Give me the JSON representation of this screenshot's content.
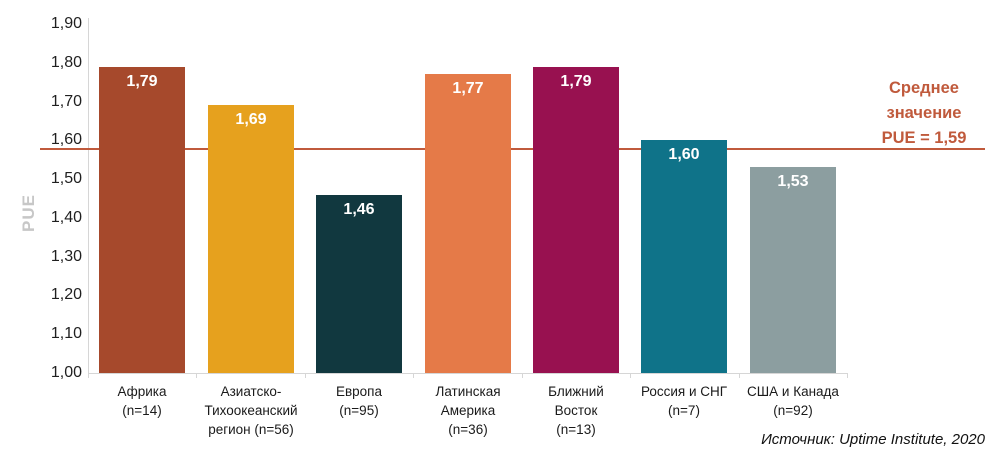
{
  "chart_data": {
    "type": "bar",
    "title": "",
    "xlabel": "",
    "ylabel": "PUE",
    "ylim": [
      1.0,
      1.9
    ],
    "grid": false,
    "legend": null,
    "y_tick_labels": [
      "1,90",
      "1,80",
      "1,70",
      "1,60",
      "1,50",
      "1,40",
      "1,30",
      "1,20",
      "1,10",
      "1,00"
    ],
    "y_tick_values": [
      1.9,
      1.8,
      1.7,
      1.6,
      1.5,
      1.4,
      1.3,
      1.2,
      1.1,
      1.0
    ],
    "decimal_separator": ",",
    "categories": [
      {
        "name": "Африка",
        "n": 14,
        "label_lines": [
          "Африка",
          "(n=14)"
        ]
      },
      {
        "name": "Азиатско-Тихоокеанский регион",
        "n": 56,
        "label_lines": [
          "Азиатско-",
          "Тихоокеанский",
          "регион (n=56)"
        ]
      },
      {
        "name": "Европа",
        "n": 95,
        "label_lines": [
          "Европа",
          "(n=95)"
        ]
      },
      {
        "name": "Латинская Америка",
        "n": 36,
        "label_lines": [
          "Латинская",
          "Америка",
          "(n=36)"
        ]
      },
      {
        "name": "Ближний Восток",
        "n": 13,
        "label_lines": [
          "Ближний",
          "Восток",
          "(n=13)"
        ]
      },
      {
        "name": "Россия и СНГ",
        "n": 7,
        "label_lines": [
          "Россия и СНГ",
          "(n=7)"
        ]
      },
      {
        "name": "США и Канада",
        "n": 92,
        "label_lines": [
          "США и Канада",
          "(n=92)"
        ]
      }
    ],
    "values": [
      1.79,
      1.69,
      1.46,
      1.77,
      1.79,
      1.6,
      1.53
    ],
    "value_labels": [
      "1,79",
      "1,69",
      "1,46",
      "1,77",
      "1,79",
      "1,60",
      "1,53"
    ],
    "bar_colors": [
      "#A6492C",
      "#E6A11E",
      "#11383F",
      "#E57A48",
      "#981150",
      "#0F7389",
      "#8C9EA0"
    ],
    "value_label_color": "#ffffff",
    "axis_color": "#d6d6d6",
    "tick_label_color": "#1f1f1f",
    "y_axis_title_color": "#c7c7c7",
    "average_line": {
      "value": 1.59,
      "color": "#C05A3C",
      "label_lines": [
        "Среднее",
        "значение",
        "PUE = 1,59"
      ],
      "label_text": "Среднее значение PUE = 1,59"
    },
    "source": "Источник: Uptime Institute, 2020"
  }
}
